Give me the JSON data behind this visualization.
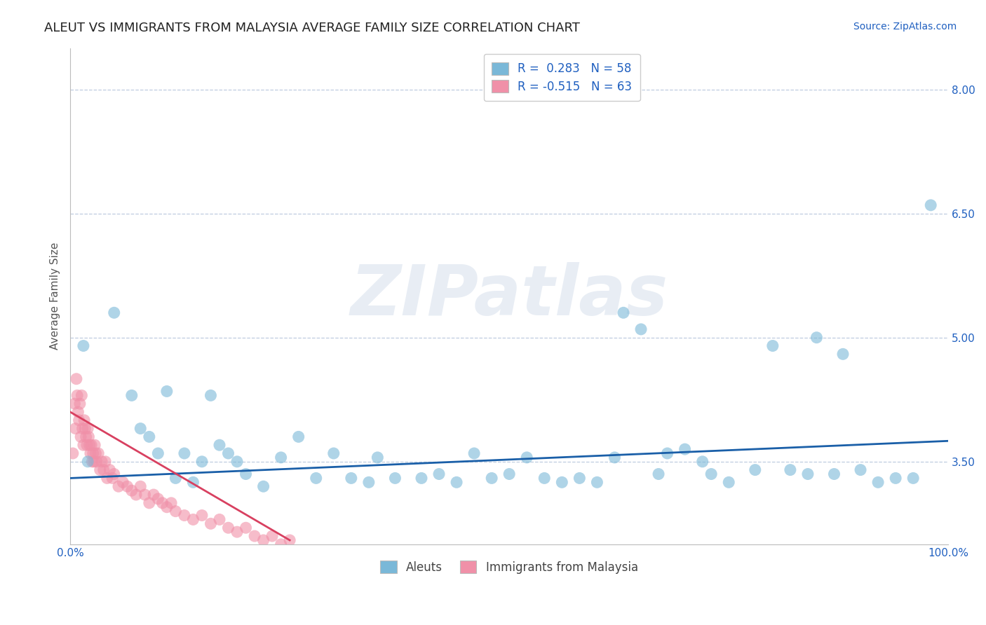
{
  "title": "ALEUT VS IMMIGRANTS FROM MALAYSIA AVERAGE FAMILY SIZE CORRELATION CHART",
  "source": "Source: ZipAtlas.com",
  "ylabel": "Average Family Size",
  "xlim": [
    0,
    100
  ],
  "ylim": [
    2.5,
    8.5
  ],
  "yticks": [
    3.5,
    5.0,
    6.5,
    8.0
  ],
  "xticks": [
    0,
    100
  ],
  "xticklabels": [
    "0.0%",
    "100.0%"
  ],
  "legend_entries": [
    {
      "label": "R =  0.283   N = 58",
      "color": "#aec6e8"
    },
    {
      "label": "R = -0.515   N = 63",
      "color": "#f4b8c1"
    }
  ],
  "legend_labels": [
    "Aleuts",
    "Immigrants from Malaysia"
  ],
  "aleuts_color": "#7ab8d8",
  "malaysia_color": "#f090a8",
  "trendline_aleuts_color": "#1a5fa8",
  "trendline_malaysia_color": "#d84060",
  "background_color": "#ffffff",
  "watermark_text": "ZIPatlas",
  "aleuts_x": [
    1.5,
    2.0,
    5.0,
    7.0,
    8.0,
    9.0,
    10.0,
    11.0,
    12.0,
    13.0,
    14.0,
    15.0,
    16.0,
    17.0,
    18.0,
    19.0,
    20.0,
    22.0,
    24.0,
    26.0,
    28.0,
    30.0,
    32.0,
    34.0,
    35.0,
    37.0,
    40.0,
    42.0,
    44.0,
    46.0,
    48.0,
    50.0,
    52.0,
    54.0,
    56.0,
    58.0,
    60.0,
    62.0,
    63.0,
    65.0,
    67.0,
    68.0,
    70.0,
    72.0,
    73.0,
    75.0,
    78.0,
    80.0,
    82.0,
    84.0,
    85.0,
    87.0,
    88.0,
    90.0,
    92.0,
    94.0,
    96.0,
    98.0
  ],
  "aleuts_y": [
    4.9,
    3.5,
    5.3,
    4.3,
    3.9,
    3.8,
    3.6,
    4.35,
    3.3,
    3.6,
    3.25,
    3.5,
    4.3,
    3.7,
    3.6,
    3.5,
    3.35,
    3.2,
    3.55,
    3.8,
    3.3,
    3.6,
    3.3,
    3.25,
    3.55,
    3.3,
    3.3,
    3.35,
    3.25,
    3.6,
    3.3,
    3.35,
    3.55,
    3.3,
    3.25,
    3.3,
    3.25,
    3.55,
    5.3,
    5.1,
    3.35,
    3.6,
    3.65,
    3.5,
    3.35,
    3.25,
    3.4,
    4.9,
    3.4,
    3.35,
    5.0,
    3.35,
    4.8,
    3.4,
    3.25,
    3.3,
    3.3,
    6.6
  ],
  "malaysia_x": [
    0.3,
    0.5,
    0.6,
    0.7,
    0.8,
    0.9,
    1.0,
    1.1,
    1.2,
    1.3,
    1.4,
    1.5,
    1.6,
    1.7,
    1.8,
    1.9,
    2.0,
    2.1,
    2.2,
    2.3,
    2.4,
    2.5,
    2.6,
    2.7,
    2.8,
    2.9,
    3.0,
    3.2,
    3.4,
    3.6,
    3.8,
    4.0,
    4.2,
    4.5,
    4.8,
    5.0,
    5.5,
    6.0,
    6.5,
    7.0,
    7.5,
    8.0,
    8.5,
    9.0,
    9.5,
    10.0,
    10.5,
    11.0,
    11.5,
    12.0,
    13.0,
    14.0,
    15.0,
    16.0,
    17.0,
    18.0,
    19.0,
    20.0,
    21.0,
    22.0,
    23.0,
    24.0,
    25.0
  ],
  "malaysia_y": [
    3.6,
    4.2,
    3.9,
    4.5,
    4.3,
    4.1,
    4.0,
    4.2,
    3.8,
    4.3,
    3.9,
    3.7,
    4.0,
    3.9,
    3.8,
    3.7,
    3.9,
    3.8,
    3.7,
    3.6,
    3.7,
    3.5,
    3.6,
    3.5,
    3.7,
    3.6,
    3.5,
    3.6,
    3.4,
    3.5,
    3.4,
    3.5,
    3.3,
    3.4,
    3.3,
    3.35,
    3.2,
    3.25,
    3.2,
    3.15,
    3.1,
    3.2,
    3.1,
    3.0,
    3.1,
    3.05,
    3.0,
    2.95,
    3.0,
    2.9,
    2.85,
    2.8,
    2.85,
    2.75,
    2.8,
    2.7,
    2.65,
    2.7,
    2.6,
    2.55,
    2.6,
    2.5,
    2.55
  ],
  "trendline_aleuts_x0": 0,
  "trendline_aleuts_y0": 3.3,
  "trendline_aleuts_x1": 100,
  "trendline_aleuts_y1": 3.75,
  "trendline_malaysia_x0": 0,
  "trendline_malaysia_y0": 4.1,
  "trendline_malaysia_x1": 25,
  "trendline_malaysia_y1": 2.55,
  "title_fontsize": 13,
  "axis_label_fontsize": 11,
  "tick_fontsize": 11,
  "legend_fontsize": 12,
  "source_fontsize": 10
}
